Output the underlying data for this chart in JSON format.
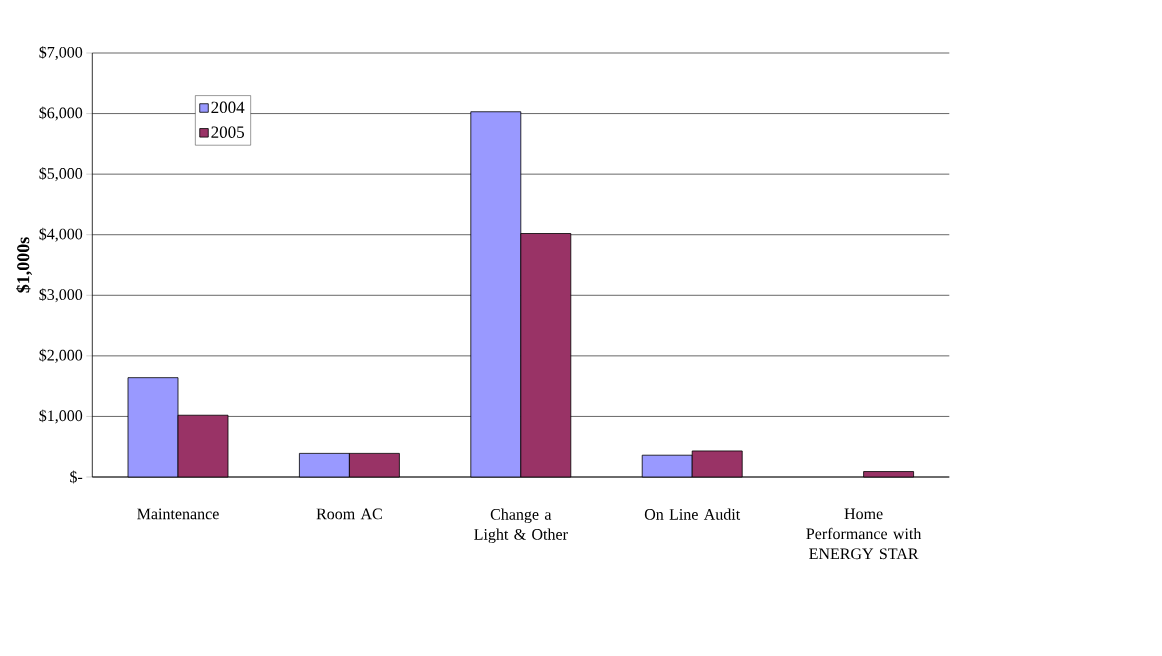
{
  "chart_data": {
    "type": "bar",
    "ylabel": "**$1,000s**",
    "categories": [
      "Maintenance",
      "Room AC",
      "Change a Light & Other",
      "On Line Audit",
      "Home Performance with ENERGY STAR"
    ],
    "series": [
      {
        "name": "2004",
        "color": "#9999ff",
        "values": [
          1640,
          390,
          6030,
          360,
          null
        ]
      },
      {
        "name": "2005",
        "color": "#993366",
        "values": [
          1020,
          390,
          4020,
          430,
          90
        ]
      }
    ],
    "ylim": [
      0,
      7000
    ],
    "yticks": [
      {
        "value": 0,
        "label": "$-"
      },
      {
        "value": 1000,
        "label": "$1,000"
      },
      {
        "value": 2000,
        "label": "$2,000"
      },
      {
        "value": 3000,
        "label": "$3,000"
      },
      {
        "value": 4000,
        "label": "$4,000"
      },
      {
        "value": 5000,
        "label": "$5,000"
      },
      {
        "value": 6000,
        "label": "$6,000"
      },
      {
        "value": 7000,
        "label": "$7,000"
      }
    ],
    "grid": "y",
    "legend": "top left"
  }
}
